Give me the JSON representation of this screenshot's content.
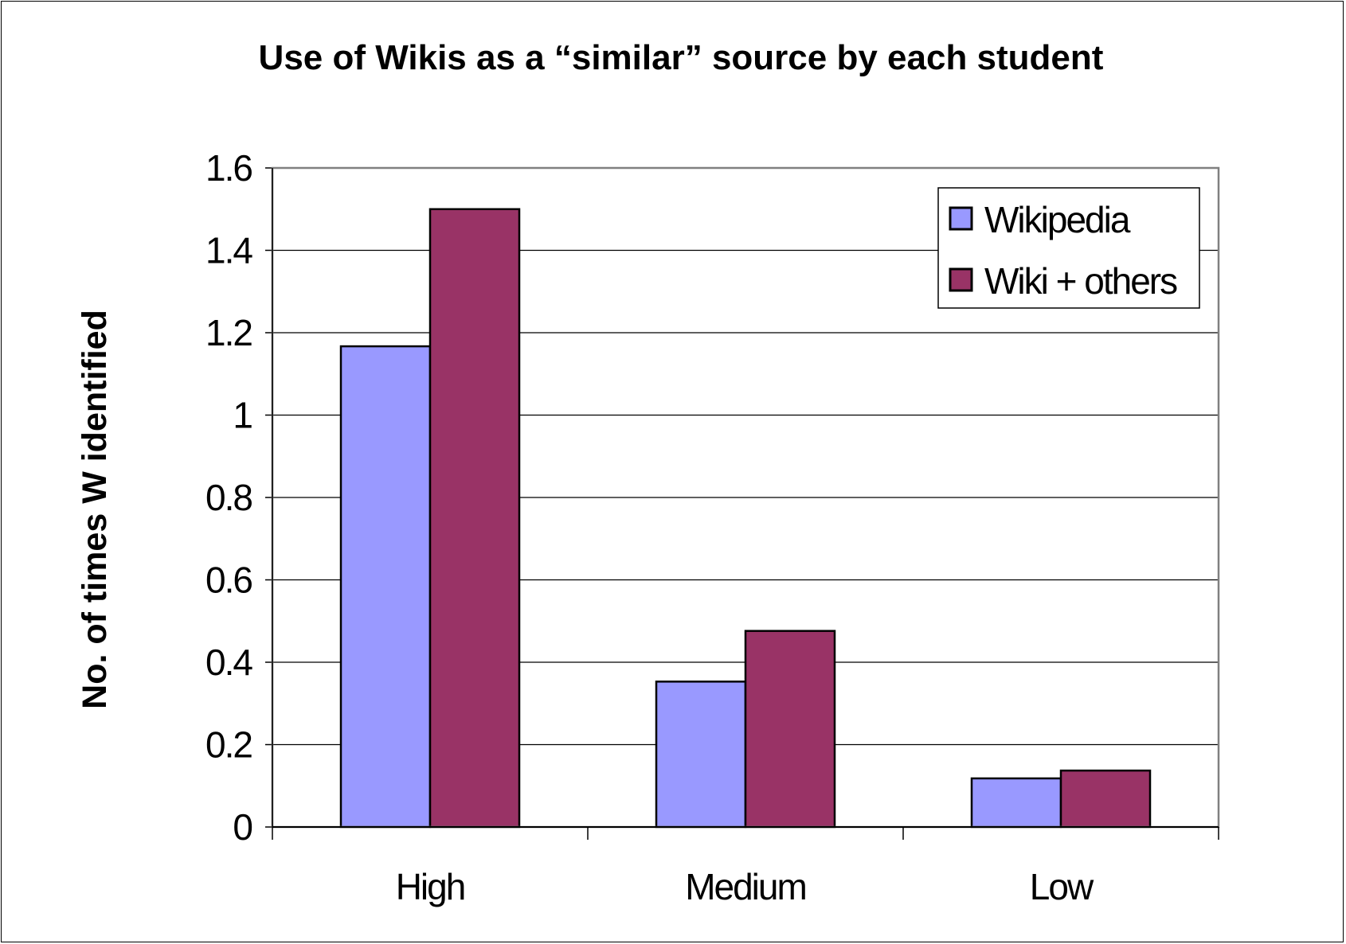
{
  "chart_data": {
    "type": "bar",
    "title": "Use of Wikis as a “similar” source by each student",
    "xlabel": "",
    "ylabel": "No. of times W identified",
    "categories": [
      "High",
      "Medium",
      "Low"
    ],
    "series": [
      {
        "name": "Wikipedia",
        "values": [
          1.167,
          0.353,
          0.118
        ],
        "color": "#9999FF"
      },
      {
        "name": "Wiki + others",
        "values": [
          1.5,
          0.476,
          0.137
        ],
        "color": "#993366"
      }
    ],
    "ylim": [
      0,
      1.6
    ],
    "yticks": [
      "0",
      "0.2",
      "0.4",
      "0.6",
      "0.8",
      "1",
      "1.2",
      "1.4",
      "1.6"
    ],
    "ytick_values": [
      0,
      0.2,
      0.4,
      0.6,
      0.8,
      1.0,
      1.2,
      1.4,
      1.6
    ],
    "grid": true,
    "legend_position": "top-right",
    "colors": {
      "plot_border": "#808080",
      "gridline": "#000000",
      "bar_edge": "#000000",
      "background": "#FFFFFF"
    }
  }
}
